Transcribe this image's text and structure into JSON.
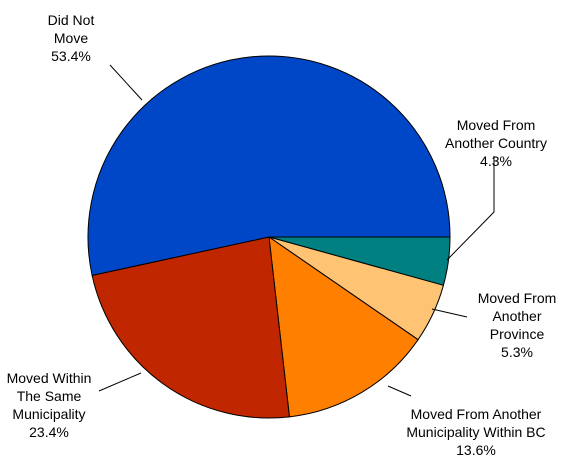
{
  "chart_data": {
    "type": "pie",
    "start_angle_deg": 0,
    "direction": "clockwise",
    "slices": [
      {
        "label": [
          "Moved From",
          "Another Country"
        ],
        "value_label": "4.3%",
        "value": 4.3,
        "color": "#008080"
      },
      {
        "label": [
          "Moved From",
          "Another",
          "Province"
        ],
        "value_label": "5.3%",
        "value": 5.3,
        "color": "#FFC374"
      },
      {
        "label": [
          "Moved From Another",
          "Municipality Within BC"
        ],
        "value_label": "13.6%",
        "value": 13.6,
        "color": "#FF8000"
      },
      {
        "label": [
          "Moved Within",
          "The Same",
          "Municipality"
        ],
        "value_label": "23.4%",
        "value": 23.4,
        "color": "#C02600"
      },
      {
        "label": [
          "Did Not",
          "Move"
        ],
        "value_label": "53.4%",
        "value": 53.4,
        "color": "#0047C8"
      }
    ]
  }
}
